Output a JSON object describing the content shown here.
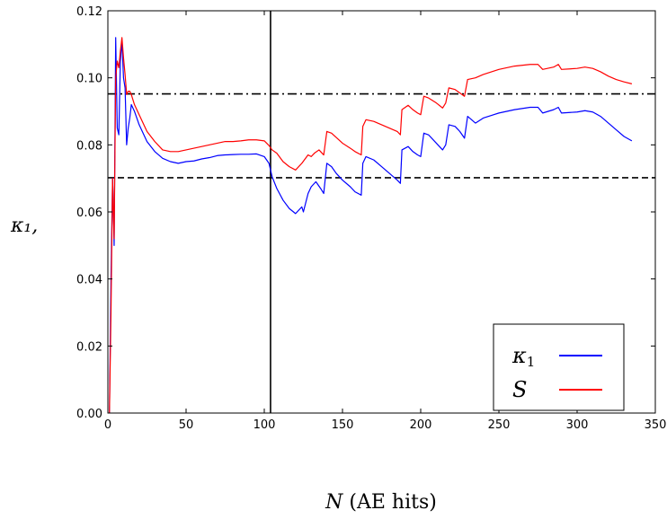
{
  "chart_data": {
    "type": "line",
    "title": "",
    "xlabel_italic": "N",
    "xlabel_rest": " (AE hits)",
    "ylabel": "κ₁,",
    "xlim": [
      0,
      350
    ],
    "ylim": [
      0,
      0.12
    ],
    "xticks": [
      0,
      50,
      100,
      150,
      200,
      250,
      300,
      350
    ],
    "yticks": [
      0.0,
      0.02,
      0.04,
      0.06,
      0.08,
      0.1,
      0.12
    ],
    "xtick_labels": [
      "0",
      "50",
      "100",
      "150",
      "200",
      "250",
      "300",
      "350"
    ],
    "ytick_labels": [
      "0.00",
      "0.02",
      "0.04",
      "0.06",
      "0.08",
      "0.10",
      "0.12"
    ],
    "grid": false,
    "legend_position": "lower-right",
    "reference_lines": [
      {
        "orientation": "horizontal",
        "y": 0.0952,
        "style": "dash-dot",
        "color": "#000000"
      },
      {
        "orientation": "horizontal",
        "y": 0.0702,
        "style": "dashed",
        "color": "#000000"
      },
      {
        "orientation": "vertical",
        "x": 104,
        "style": "solid",
        "color": "#000000"
      }
    ],
    "series": [
      {
        "name": "κ₁",
        "color": "#0000ff",
        "points": [
          [
            1,
            0
          ],
          [
            2,
            0.04
          ],
          [
            3,
            0.07
          ],
          [
            4,
            0.05
          ],
          [
            5,
            0.112
          ],
          [
            6,
            0.085
          ],
          [
            7,
            0.083
          ],
          [
            8,
            0.105
          ],
          [
            9,
            0.111
          ],
          [
            10,
            0.1
          ],
          [
            11,
            0.097
          ],
          [
            12,
            0.08
          ],
          [
            13,
            0.085
          ],
          [
            14,
            0.088
          ],
          [
            15,
            0.092
          ],
          [
            17,
            0.09
          ],
          [
            20,
            0.086
          ],
          [
            25,
            0.081
          ],
          [
            30,
            0.078
          ],
          [
            35,
            0.076
          ],
          [
            40,
            0.075
          ],
          [
            45,
            0.0745
          ],
          [
            50,
            0.075
          ],
          [
            55,
            0.0752
          ],
          [
            60,
            0.0758
          ],
          [
            65,
            0.0762
          ],
          [
            70,
            0.0768
          ],
          [
            75,
            0.077
          ],
          [
            80,
            0.0771
          ],
          [
            85,
            0.0772
          ],
          [
            90,
            0.0772
          ],
          [
            95,
            0.0773
          ],
          [
            100,
            0.0765
          ],
          [
            103,
            0.0745
          ],
          [
            105,
            0.0705
          ],
          [
            108,
            0.067
          ],
          [
            112,
            0.0635
          ],
          [
            116,
            0.061
          ],
          [
            120,
            0.0595
          ],
          [
            124,
            0.0615
          ],
          [
            125,
            0.06
          ],
          [
            128,
            0.0655
          ],
          [
            130,
            0.0675
          ],
          [
            133,
            0.069
          ],
          [
            136,
            0.067
          ],
          [
            138,
            0.0655
          ],
          [
            140,
            0.0745
          ],
          [
            143,
            0.0735
          ],
          [
            146,
            0.0715
          ],
          [
            150,
            0.0695
          ],
          [
            155,
            0.0675
          ],
          [
            158,
            0.066
          ],
          [
            162,
            0.065
          ],
          [
            163,
            0.0745
          ],
          [
            165,
            0.0765
          ],
          [
            170,
            0.0755
          ],
          [
            175,
            0.0735
          ],
          [
            180,
            0.0715
          ],
          [
            185,
            0.0695
          ],
          [
            187,
            0.0685
          ],
          [
            188,
            0.0785
          ],
          [
            192,
            0.0795
          ],
          [
            195,
            0.078
          ],
          [
            198,
            0.077
          ],
          [
            200,
            0.0765
          ],
          [
            202,
            0.0835
          ],
          [
            205,
            0.083
          ],
          [
            210,
            0.0805
          ],
          [
            214,
            0.0785
          ],
          [
            216,
            0.08
          ],
          [
            218,
            0.086
          ],
          [
            222,
            0.0855
          ],
          [
            225,
            0.084
          ],
          [
            228,
            0.082
          ],
          [
            230,
            0.0885
          ],
          [
            235,
            0.0865
          ],
          [
            240,
            0.088
          ],
          [
            250,
            0.0895
          ],
          [
            260,
            0.0905
          ],
          [
            270,
            0.0912
          ],
          [
            275,
            0.0912
          ],
          [
            278,
            0.0895
          ],
          [
            285,
            0.0905
          ],
          [
            288,
            0.0912
          ],
          [
            290,
            0.0895
          ],
          [
            300,
            0.0898
          ],
          [
            305,
            0.0902
          ],
          [
            310,
            0.0898
          ],
          [
            315,
            0.0885
          ],
          [
            320,
            0.0865
          ],
          [
            325,
            0.0845
          ],
          [
            330,
            0.0825
          ],
          [
            335,
            0.0812
          ]
        ]
      },
      {
        "name": "S",
        "color": "#ff0000",
        "points": [
          [
            1,
            0
          ],
          [
            2,
            0.03
          ],
          [
            3,
            0.07
          ],
          [
            4,
            0.052
          ],
          [
            5,
            0.1
          ],
          [
            6,
            0.105
          ],
          [
            7,
            0.103
          ],
          [
            8,
            0.108
          ],
          [
            9,
            0.112
          ],
          [
            10,
            0.106
          ],
          [
            11,
            0.101
          ],
          [
            12,
            0.095
          ],
          [
            13,
            0.096
          ],
          [
            14,
            0.096
          ],
          [
            15,
            0.095
          ],
          [
            17,
            0.092
          ],
          [
            20,
            0.089
          ],
          [
            25,
            0.084
          ],
          [
            30,
            0.081
          ],
          [
            35,
            0.0785
          ],
          [
            40,
            0.078
          ],
          [
            45,
            0.078
          ],
          [
            50,
            0.0785
          ],
          [
            55,
            0.079
          ],
          [
            60,
            0.0795
          ],
          [
            65,
            0.08
          ],
          [
            70,
            0.0805
          ],
          [
            75,
            0.081
          ],
          [
            80,
            0.081
          ],
          [
            85,
            0.0812
          ],
          [
            90,
            0.0815
          ],
          [
            95,
            0.0815
          ],
          [
            100,
            0.0812
          ],
          [
            103,
            0.0798
          ],
          [
            105,
            0.0785
          ],
          [
            108,
            0.0775
          ],
          [
            112,
            0.075
          ],
          [
            116,
            0.0735
          ],
          [
            120,
            0.0725
          ],
          [
            124,
            0.0745
          ],
          [
            128,
            0.077
          ],
          [
            130,
            0.0765
          ],
          [
            132,
            0.0775
          ],
          [
            135,
            0.0785
          ],
          [
            138,
            0.077
          ],
          [
            140,
            0.084
          ],
          [
            143,
            0.0835
          ],
          [
            146,
            0.0822
          ],
          [
            150,
            0.0805
          ],
          [
            155,
            0.079
          ],
          [
            158,
            0.078
          ],
          [
            162,
            0.077
          ],
          [
            163,
            0.0855
          ],
          [
            165,
            0.0875
          ],
          [
            170,
            0.087
          ],
          [
            175,
            0.086
          ],
          [
            180,
            0.085
          ],
          [
            185,
            0.084
          ],
          [
            187,
            0.083
          ],
          [
            188,
            0.0905
          ],
          [
            192,
            0.0918
          ],
          [
            195,
            0.0905
          ],
          [
            198,
            0.0895
          ],
          [
            200,
            0.089
          ],
          [
            202,
            0.0945
          ],
          [
            205,
            0.094
          ],
          [
            210,
            0.0925
          ],
          [
            214,
            0.091
          ],
          [
            216,
            0.0925
          ],
          [
            218,
            0.097
          ],
          [
            222,
            0.0965
          ],
          [
            225,
            0.0955
          ],
          [
            228,
            0.0945
          ],
          [
            230,
            0.0995
          ],
          [
            235,
            0.1
          ],
          [
            240,
            0.101
          ],
          [
            250,
            0.1025
          ],
          [
            260,
            0.1035
          ],
          [
            270,
            0.104
          ],
          [
            275,
            0.104
          ],
          [
            278,
            0.1025
          ],
          [
            285,
            0.1032
          ],
          [
            288,
            0.104
          ],
          [
            290,
            0.1025
          ],
          [
            300,
            0.1028
          ],
          [
            305,
            0.1032
          ],
          [
            310,
            0.1028
          ],
          [
            315,
            0.1018
          ],
          [
            320,
            0.1005
          ],
          [
            325,
            0.0995
          ],
          [
            330,
            0.0988
          ],
          [
            335,
            0.0982
          ]
        ]
      }
    ],
    "legend": [
      {
        "label": "κ",
        "sub": "1",
        "color": "#0000ff"
      },
      {
        "label": "S",
        "sub": "",
        "color": "#ff0000"
      }
    ]
  }
}
